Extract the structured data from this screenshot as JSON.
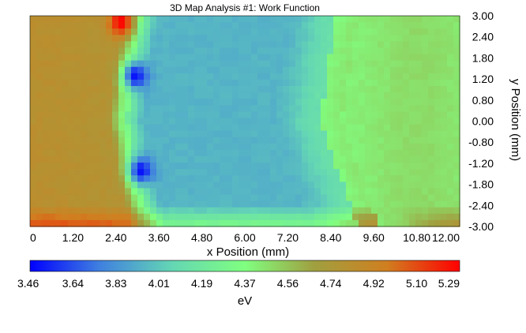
{
  "chart_data": {
    "type": "heatmap",
    "title": "3D Map Analysis #1: Work Function",
    "xlabel": "x Position (mm)",
    "ylabel": "y Position (mm)",
    "xlim": [
      0,
      12
    ],
    "ylim": [
      -3,
      3
    ],
    "x_ticks": [
      "0",
      "1.20",
      "2.40",
      "3.60",
      "4.80",
      "6.00",
      "7.20",
      "8.40",
      "9.60",
      "10.80",
      "12.00"
    ],
    "y_ticks": [
      "3.00",
      "2.40",
      "1.80",
      "1.20",
      "0.80",
      "0.00",
      "-0.80",
      "-1.20",
      "-1.80",
      "-2.40",
      "-3.00"
    ],
    "colorbar": {
      "label": "eV",
      "min": 3.46,
      "max": 5.29,
      "ticks": [
        "3.46",
        "3.64",
        "3.83",
        "4.01",
        "4.19",
        "4.37",
        "4.56",
        "4.74",
        "4.92",
        "5.10",
        "5.29"
      ],
      "colors": [
        "#0000ff",
        "#3f7fe0",
        "#64d6b4",
        "#80ff80",
        "#a0a040",
        "#d07f20",
        "#ff0000"
      ]
    },
    "regions": [
      {
        "name": "left-plateau",
        "x": [
          0,
          2.5
        ],
        "value": 4.8
      },
      {
        "name": "left-edge-rim",
        "x": [
          2.5,
          3.0
        ],
        "value": 4.4
      },
      {
        "name": "central-well",
        "x": [
          3.0,
          8.0
        ],
        "value": 3.95
      },
      {
        "name": "right-edge-rim",
        "x": [
          8.0,
          8.6
        ],
        "value": 4.4
      },
      {
        "name": "right-plateau",
        "x": [
          8.6,
          12.0
        ],
        "value": 4.45
      }
    ],
    "hotspots": [
      {
        "name": "red-hotspot",
        "x": 2.55,
        "y": 2.8,
        "value": 5.29
      },
      {
        "name": "blue-spot-upper",
        "x": 2.95,
        "y": 1.3,
        "value": 3.5
      },
      {
        "name": "blue-spot-lower",
        "x": 3.1,
        "y": -1.4,
        "value": 3.5
      }
    ],
    "grid": false
  }
}
